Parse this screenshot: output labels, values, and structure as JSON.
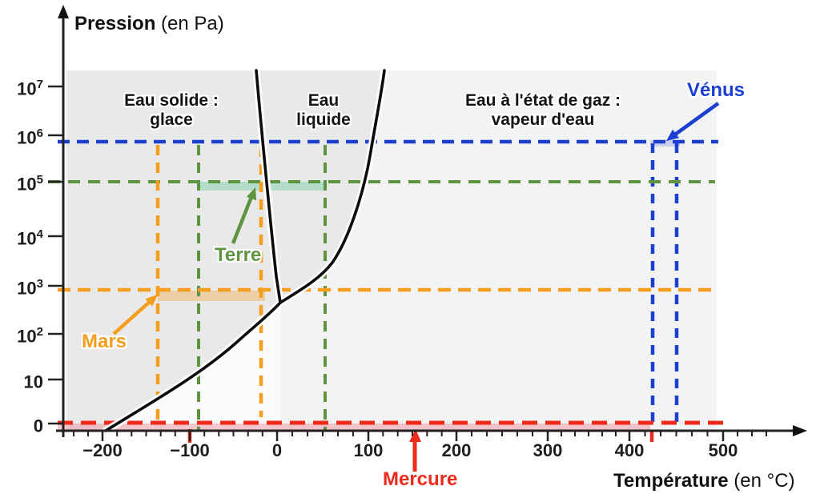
{
  "titles": {
    "pressure_name": "Pression",
    "pressure_unit": " (en Pa)",
    "temperature_name": "Température",
    "temperature_unit": " (en °C)"
  },
  "regions": {
    "solid_line1": "Eau solide :",
    "solid_line2": "glace",
    "liquid_line1": "Eau",
    "liquid_line2": "liquide",
    "gas_line1": "Eau à l'état de gaz :",
    "gas_line2": "vapeur d'eau"
  },
  "planets": {
    "venus": "Vénus",
    "terre": "Terre",
    "mars": "Mars",
    "mercure": "Mercure"
  },
  "axes": {
    "x_ticks": [
      "−200",
      "−100",
      "0",
      "100",
      "200",
      "300",
      "400",
      "500"
    ],
    "y_ticks": [
      {
        "base": "10",
        "exp": "7"
      },
      {
        "base": "10",
        "exp": "6"
      },
      {
        "base": "10",
        "exp": "5"
      },
      {
        "base": "10",
        "exp": "4"
      },
      {
        "base": "10",
        "exp": "3"
      },
      {
        "base": "10",
        "exp": "2"
      },
      {
        "base": "10",
        "exp": ""
      },
      {
        "base": "0",
        "exp": ""
      }
    ]
  },
  "colors": {
    "venus_blue": "#1b3fd1",
    "terre_green": "#5e9340",
    "mars_orange": "#f59d1d",
    "mercure_red": "#ee2a1a",
    "plot_gray": "#e9e9e9",
    "vapor_gray": "#f3f3f3"
  },
  "chart_data": {
    "type": "line",
    "xlabel": "Température (en °C)",
    "ylabel": "Pression (en Pa)",
    "x_scale": "linear",
    "y_scale": "log",
    "x_ticks": [
      -200,
      -100,
      0,
      100,
      200,
      300,
      400,
      500
    ],
    "y_tick_labels": [
      "10^7",
      "10^6",
      "10^5",
      "10^4",
      "10^3",
      "10^2",
      "10",
      "0"
    ],
    "regions": [
      "Eau solide : glace",
      "Eau liquide",
      "Eau à l'état de gaz : vapeur d'eau"
    ],
    "triple_point": {
      "T_c": 0,
      "P_pa": 600
    },
    "series": [
      {
        "name": "courbe de fusion (solide/liquide)",
        "points": [
          {
            "T": -24,
            "P": 20000000
          },
          {
            "T": -15,
            "P": 100000
          },
          {
            "T": -5,
            "P": 2000
          },
          {
            "T": 0,
            "P": 600
          }
        ]
      },
      {
        "name": "courbe de vaporisation (liquide/gaz)",
        "points": [
          {
            "T": 0,
            "P": 600
          },
          {
            "T": 50,
            "P": 2000
          },
          {
            "T": 100,
            "P": 100000
          },
          {
            "T": 120,
            "P": 20000000
          }
        ]
      },
      {
        "name": "courbe de sublimation (solide/gaz)",
        "points": [
          {
            "T": -195,
            "P": 1
          },
          {
            "T": -135,
            "P": 4
          },
          {
            "T": -90,
            "P": 12
          },
          {
            "T": -25,
            "P": 160
          },
          {
            "T": 0,
            "P": 600
          }
        ]
      }
    ],
    "planet_lines": [
      {
        "name": "Vénus",
        "color": "#1b3fd1",
        "pressure_pa": 700000,
        "temperature_c": [
          427,
          452
        ]
      },
      {
        "name": "Terre",
        "color": "#5e9340",
        "pressure_pa": 100000,
        "temperature_c": [
          -90,
          54
        ]
      },
      {
        "name": "Mars",
        "color": "#f59d1d",
        "pressure_pa": 800,
        "temperature_c": [
          -137,
          -18
        ]
      },
      {
        "name": "Mercure",
        "color": "#ee2a1a",
        "pressure_pa": 1,
        "temperature_c": [
          -100,
          425
        ]
      }
    ],
    "legend_position": "none",
    "grid": false
  }
}
